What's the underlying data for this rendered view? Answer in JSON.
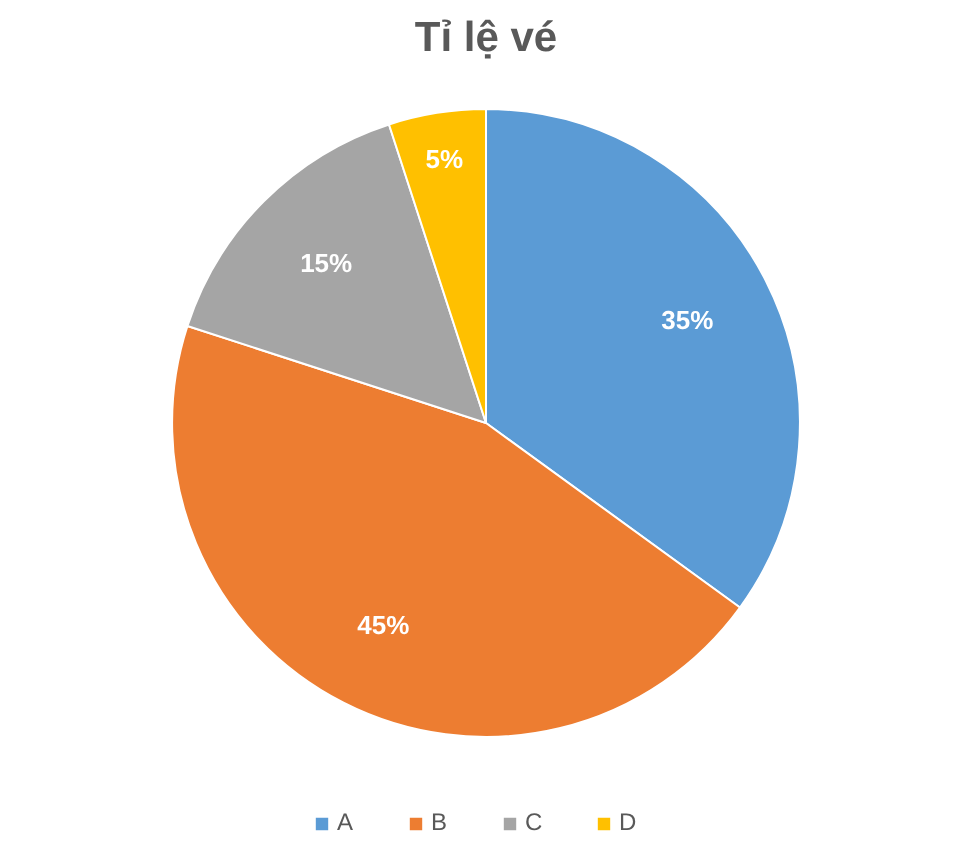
{
  "chart_data": {
    "type": "pie",
    "title": "Tỉ lệ vé",
    "categories": [
      "A",
      "B",
      "C",
      "D"
    ],
    "values": [
      35,
      45,
      15,
      5
    ],
    "colors": [
      "#5b9bd5",
      "#ed7d31",
      "#a5a5a5",
      "#ffc000"
    ],
    "value_labels": [
      "35%",
      "45%",
      "15%",
      "5%"
    ],
    "legend": "bottom"
  }
}
